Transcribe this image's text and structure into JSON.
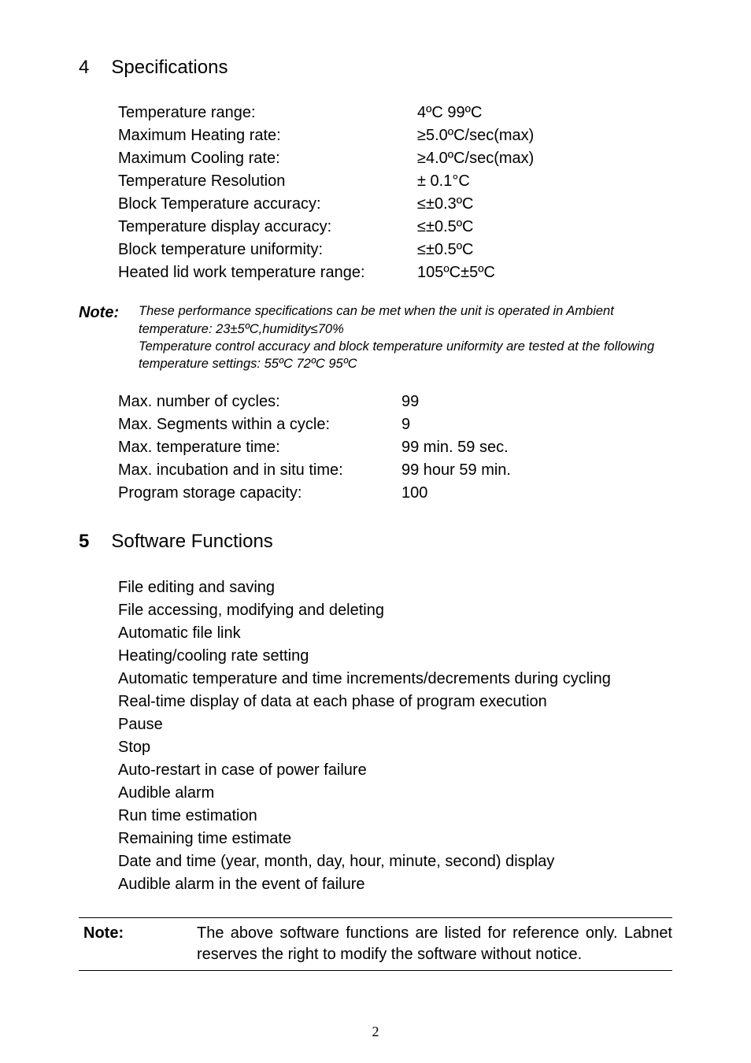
{
  "section4": {
    "num": "4",
    "title": "Specifications",
    "rows": [
      {
        "label": "Temperature range:",
        "value": "4ºC    99ºC"
      },
      {
        "label": "Maximum Heating rate:",
        "value": "≥5.0ºC/sec(max)"
      },
      {
        "label": "Maximum Cooling rate:",
        "value": "≥4.0ºC/sec(max)"
      },
      {
        "label": "Temperature Resolution",
        "value": "± 0.1°C"
      },
      {
        "label": "Block Temperature accuracy:",
        "value": "≤±0.3ºC"
      },
      {
        "label": "Temperature display accuracy:",
        "value": "≤±0.5ºC"
      },
      {
        "label": "Block temperature uniformity:",
        "value": "≤±0.5ºC"
      },
      {
        "label": "Heated lid work temperature range:",
        "value": "105ºC±5ºC"
      }
    ]
  },
  "note1": {
    "label": "Note:",
    "line1": "These performance specifications can be met when the unit is operated in Ambient temperature: 23±5ºC,humidity≤70%",
    "line2": "Temperature control accuracy and block temperature uniformity are tested at the following temperature settings: 55ºC    72ºC    95ºC"
  },
  "maxblock": {
    "rows": [
      {
        "label": "Max. number of cycles:",
        "value": "99"
      },
      {
        "label": "Max. Segments within a cycle:",
        "value": "9"
      },
      {
        "label": "Max. temperature time:",
        "value": "99 min. 59 sec."
      },
      {
        "label": "Max. incubation and in situ time:",
        "value": "99 hour 59 min."
      },
      {
        "label": "Program storage capacity:",
        "value": "100"
      }
    ]
  },
  "section5": {
    "num": "5",
    "title": "Software Functions",
    "features": [
      "File editing and saving",
      "File accessing, modifying and deleting",
      "Automatic file link",
      "Heating/cooling rate setting",
      "Automatic temperature and time increments/decrements during cycling",
      "Real-time display of data at each phase of program execution",
      "Pause",
      "Stop",
      "Auto-restart in case of power failure",
      "Audible alarm",
      "Run time estimation",
      "Remaining time estimate",
      "Date and time (year, month, day, hour, minute, second) display",
      "Audible alarm in the event of failure"
    ]
  },
  "note2": {
    "label": "Note:",
    "text": "The above software functions are listed for reference only. Labnet reserves the right to modify the software without notice."
  },
  "page_number": "2"
}
